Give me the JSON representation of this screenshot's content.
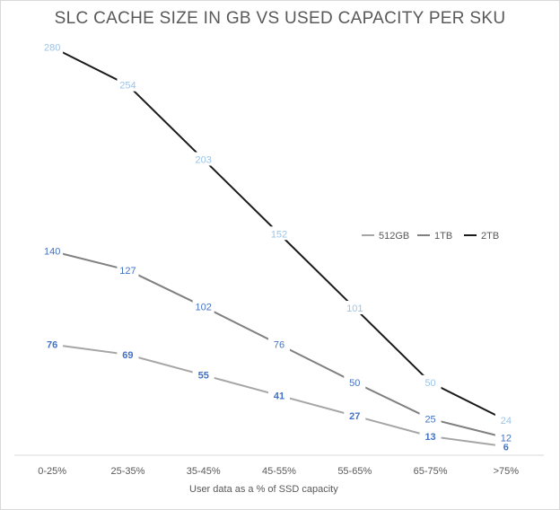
{
  "chart_data": {
    "type": "line",
    "title": "SLC CACHE SIZE IN GB VS USED CAPACITY PER SKU",
    "xlabel": "User data as a % of SSD capacity",
    "ylabel": "",
    "categories": [
      "0-25%",
      "25-35%",
      "35-45%",
      "45-55%",
      "55-65%",
      "65-75%",
      ">75%"
    ],
    "ylim": [
      0,
      300
    ],
    "grid": false,
    "legend": "right-middle",
    "series": [
      {
        "name": "512GB",
        "values": [
          76,
          69,
          55,
          41,
          27,
          13,
          6
        ],
        "color": "#a6a6a6",
        "label_color": "#4472c4",
        "label_weight": "bold"
      },
      {
        "name": "1TB",
        "values": [
          140,
          127,
          102,
          76,
          50,
          25,
          12
        ],
        "color": "#808080",
        "label_color": "#4472c4",
        "label_weight": "normal"
      },
      {
        "name": "2TB",
        "values": [
          280,
          254,
          203,
          152,
          101,
          50,
          24
        ],
        "color": "#1a1a1a",
        "label_color": "#9dc3e6",
        "label_weight": "normal"
      }
    ]
  }
}
